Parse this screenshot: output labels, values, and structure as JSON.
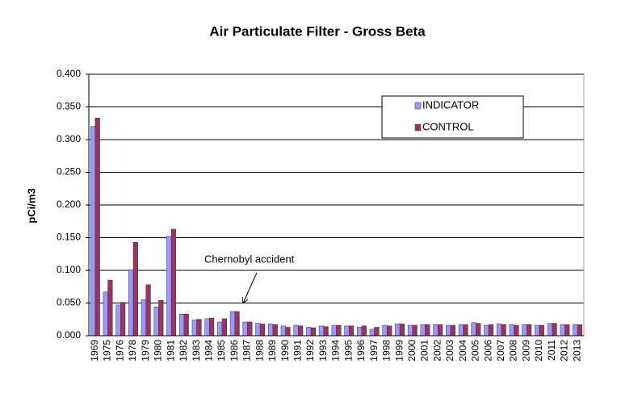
{
  "chart_data": {
    "type": "bar",
    "title": "Air Particulate Filter - Gross Beta",
    "y_label": "pCi/m3",
    "categories": [
      "1969",
      "1975",
      "1976",
      "1978",
      "1979",
      "1980",
      "1981",
      "1982",
      "1983",
      "1984",
      "1985",
      "1986",
      "1987",
      "1988",
      "1989",
      "1990",
      "1991",
      "1992",
      "1993",
      "1994",
      "1995",
      "1996",
      "1997",
      "1998",
      "1999",
      "2000",
      "2001",
      "2002",
      "2003",
      "2004",
      "2005",
      "2006",
      "2007",
      "2008",
      "2009",
      "2010",
      "2011",
      "2012",
      "2013"
    ],
    "series": [
      {
        "name": "INDICATOR",
        "color": "#9999ff",
        "values": [
          0.32,
          0.067,
          0.047,
          0.101,
          0.055,
          0.044,
          0.152,
          0.033,
          0.024,
          0.026,
          0.021,
          0.037,
          0.021,
          0.019,
          0.018,
          0.015,
          0.016,
          0.013,
          0.015,
          0.016,
          0.015,
          0.013,
          0.01,
          0.016,
          0.018,
          0.016,
          0.017,
          0.017,
          0.016,
          0.017,
          0.02,
          0.016,
          0.018,
          0.017,
          0.017,
          0.016,
          0.019,
          0.017,
          0.017
        ]
      },
      {
        "name": "CONTROL",
        "color": "#993366",
        "values": [
          0.333,
          0.085,
          0.051,
          0.143,
          0.078,
          0.054,
          0.163,
          0.033,
          0.025,
          0.027,
          0.026,
          0.037,
          0.021,
          0.018,
          0.017,
          0.013,
          0.015,
          0.012,
          0.014,
          0.016,
          0.015,
          0.015,
          0.013,
          0.015,
          0.018,
          0.016,
          0.017,
          0.017,
          0.016,
          0.017,
          0.019,
          0.017,
          0.017,
          0.016,
          0.017,
          0.016,
          0.019,
          0.017,
          0.017
        ]
      }
    ],
    "ylim": [
      0,
      0.4
    ],
    "yticks": [
      {
        "value": 0,
        "label": "0.000"
      },
      {
        "value": 0.05,
        "label": "0.050"
      },
      {
        "value": 0.1,
        "label": "0.100"
      },
      {
        "value": 0.15,
        "label": "0.150"
      },
      {
        "value": 0.2,
        "label": "0.200"
      },
      {
        "value": 0.25,
        "label": "0.250"
      },
      {
        "value": 0.3,
        "label": "0.300"
      },
      {
        "value": 0.35,
        "label": "0.350"
      },
      {
        "value": 0.4,
        "label": "0.400"
      }
    ],
    "grid": true,
    "legend": "upper right",
    "annotations": [
      {
        "text": "Chernobyl accident"
      }
    ]
  }
}
